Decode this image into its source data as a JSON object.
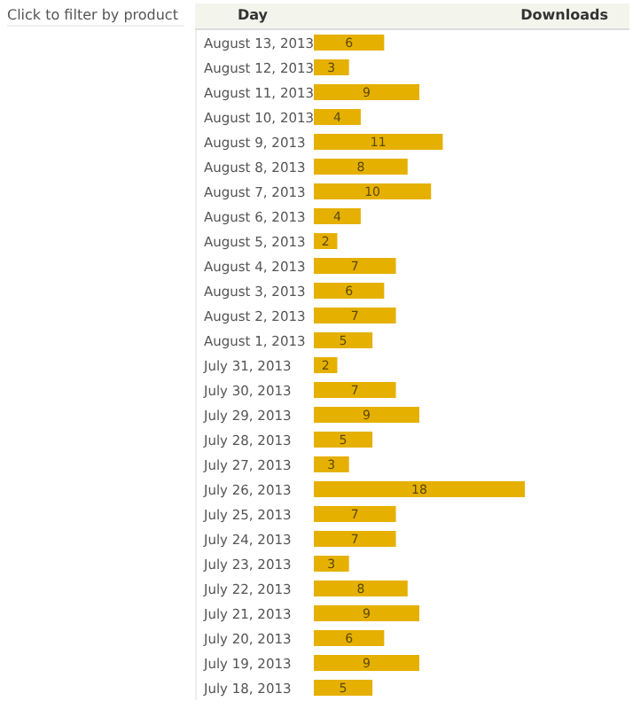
{
  "chart_data": {
    "type": "bar",
    "orientation": "horizontal",
    "ylabel": "Day",
    "xlabel": "Downloads",
    "annotations": [
      "Click to filter by product"
    ],
    "categories": [
      "August 13, 2013",
      "August 12, 2013",
      "August 11, 2013",
      "August 10, 2013",
      "August 9, 2013",
      "August 8, 2013",
      "August 7, 2013",
      "August 6, 2013",
      "August 5, 2013",
      "August 4, 2013",
      "August 3, 2013",
      "August 2, 2013",
      "August 1, 2013",
      "July 31, 2013",
      "July 30, 2013",
      "July 29, 2013",
      "July 28, 2013",
      "July 27, 2013",
      "July 26, 2013",
      "July 25, 2013",
      "July 24, 2013",
      "July 23, 2013",
      "July 22, 2013",
      "July 21, 2013",
      "July 20, 2013",
      "July 19, 2013",
      "July 18, 2013"
    ],
    "values": [
      6,
      3,
      9,
      4,
      11,
      8,
      10,
      4,
      2,
      7,
      6,
      7,
      5,
      2,
      7,
      9,
      5,
      3,
      18,
      7,
      7,
      3,
      8,
      9,
      6,
      9,
      5
    ],
    "color": "#e6b000",
    "data_labels": true
  }
}
